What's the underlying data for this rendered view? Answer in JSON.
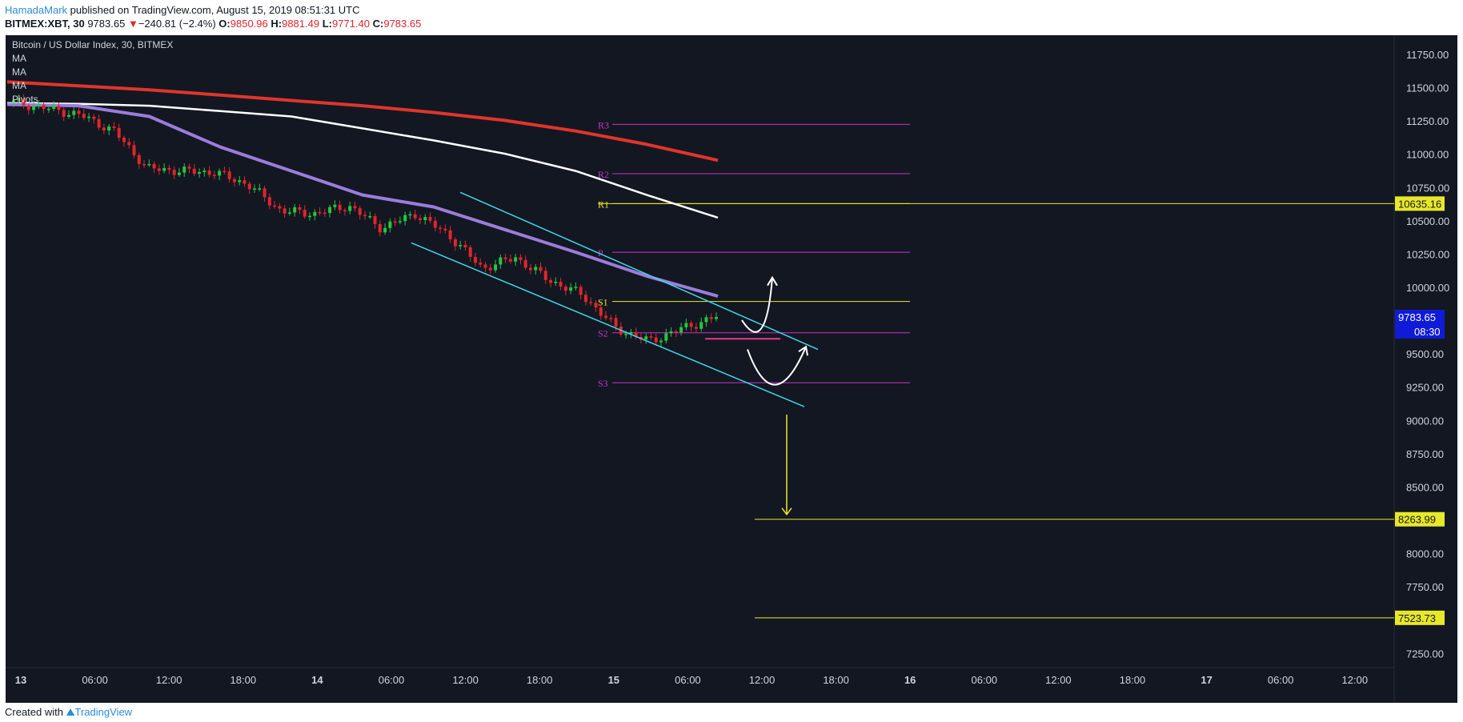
{
  "header": {
    "author": "HamadaMark",
    "published": " published on TradingView.com, August 15, 2019 08:51:31 UTC",
    "symbol": "BITMEX:XBT, 30",
    "last": "9783.65",
    "change_arrow": "▼",
    "change": "−240.81 (−2.4%)",
    "o_label": "O:",
    "o_value": "9850.96",
    "h_label": "H:",
    "h_value": "9881.49",
    "l_label": "L:",
    "l_value": "9771.40",
    "c_label": "C:",
    "c_value": "9783.65"
  },
  "legend": {
    "title": "Bitcoin / US Dollar Index, 30, BITMEX",
    "items": [
      "MA",
      "MA",
      "MA",
      "Pivots"
    ]
  },
  "footer": {
    "created_with": "Created with",
    "brand": "TradingView"
  },
  "colors": {
    "background": "#131722",
    "up": "#26c640",
    "down": "#e0262b",
    "ma_red": "#e0352b",
    "ma_white": "#ffffff",
    "ma_purple": "#9b7ddb",
    "pivot_magenta": "#c535c8",
    "pivot_yellow": "#e8e82a",
    "channel": "#3fd8e8",
    "level_yellow": "#e8e82a",
    "price_tag": "#0f1bd6"
  },
  "chart_data": {
    "type": "candlestick",
    "title": "Bitcoin / US Dollar Index, 30, BITMEX",
    "ylim": [
      7150,
      11900
    ],
    "y_ticks": [
      "11750.00",
      "11500.00",
      "11250.00",
      "11000.00",
      "10750.00",
      "10500.00",
      "10250.00",
      "10000.00",
      "9750.00",
      "9500.00",
      "9250.00",
      "9000.00",
      "8750.00",
      "8500.00",
      "8250.00",
      "8000.00",
      "7750.00",
      "7500.00",
      "7250.00"
    ],
    "x_ticks": [
      "13",
      "06:00",
      "12:00",
      "18:00",
      "14",
      "06:00",
      "12:00",
      "18:00",
      "15",
      "06:00",
      "12:00",
      "18:00",
      "16",
      "06:00",
      "12:00",
      "18:00",
      "17",
      "06:00",
      "12:00"
    ],
    "grid": false,
    "ma_red": [
      11550,
      11520,
      11490,
      11450,
      11410,
      11370,
      11320,
      11260,
      11180,
      11080,
      10960
    ],
    "ma_white": [
      11390,
      11385,
      11370,
      11330,
      11290,
      11200,
      11110,
      11010,
      10880,
      10700,
      10530
    ],
    "ma_purple": [
      11380,
      11370,
      11290,
      11060,
      10880,
      10700,
      10610,
      10440,
      10270,
      10090,
      9940
    ],
    "close": [
      11395,
      11350,
      11300,
      11180,
      10900,
      10880,
      10870,
      10780,
      10580,
      10560,
      10620,
      10450,
      10560,
      10400,
      10150,
      10230,
      10060,
      9950,
      9700,
      9600,
      9700,
      9783.65
    ],
    "pivots": [
      {
        "label": "R3",
        "value": 11230
      },
      {
        "label": "R2",
        "value": 10860
      },
      {
        "label": "R1",
        "value": 10635.16
      },
      {
        "label": "P",
        "value": 10270
      },
      {
        "label": "S1",
        "value": 9900
      },
      {
        "label": "S2",
        "value": 9665
      },
      {
        "label": "S3",
        "value": 9290
      }
    ],
    "levels": [
      {
        "label": "10635.16",
        "value": 10635.16
      },
      {
        "label": "8263.99",
        "value": 8263.99
      },
      {
        "label": "7523.73",
        "value": 7523.73
      }
    ],
    "last_price": {
      "label": "9783.65",
      "countdown": "08:30"
    },
    "channel": {
      "upper": [
        {
          "x": "13 12:30 +1d",
          "y": 10720
        },
        {
          "x": "15 16:00",
          "y": 9540
        }
      ],
      "lower": [
        {
          "x": "13 08:00 +1d",
          "y": 10340
        },
        {
          "x": "15 14:30",
          "y": 9110
        }
      ]
    },
    "annotations": [
      "curved arrow up from ~9650",
      "curved arrow up from ~9300",
      "target arrow down to 8263.99"
    ]
  }
}
